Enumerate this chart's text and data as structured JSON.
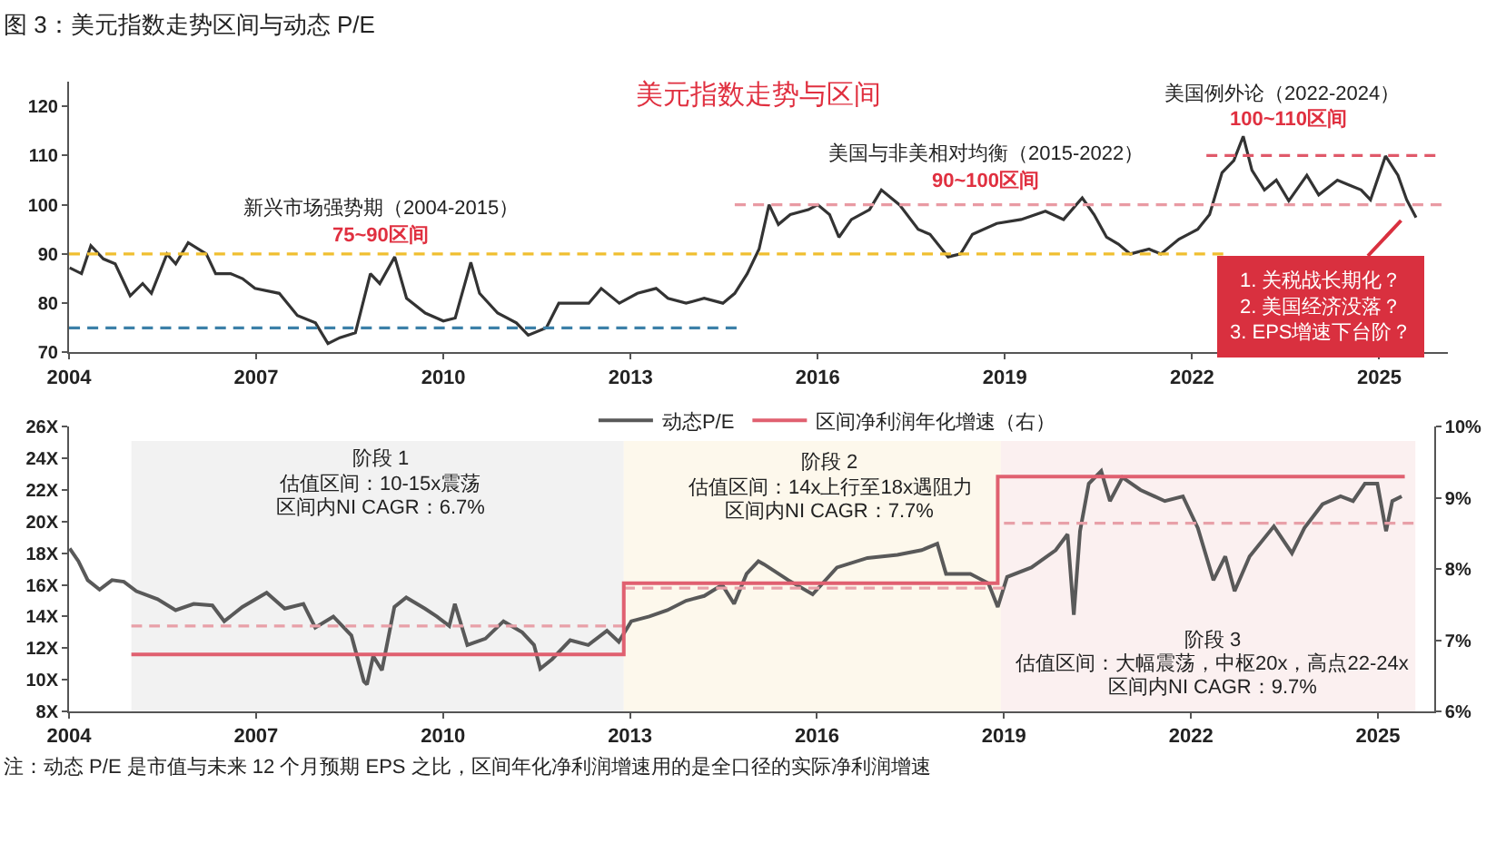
{
  "chart_data": [
    {
      "type": "line",
      "title": "图 3：美元指数走势区间与动态 P/E",
      "subtitle": "美元指数走势与区间",
      "xlim": [
        2004,
        2026.1
      ],
      "xticks": [
        2004,
        2007,
        2010,
        2013,
        2016,
        2019,
        2022,
        2025
      ],
      "ylim": [
        70,
        125
      ],
      "yticks": [
        70,
        80,
        90,
        100,
        110,
        120
      ],
      "annotations": [
        "新兴市场强势期（2004-2015）",
        "75~90区间",
        "美国与非美相对均衡（2015-2022）",
        "90~100区间",
        "美国例外论（2022-2024）",
        "100~110区间",
        "1. 关税战长期化？\n2. 美国经济没落？\n3. EPS增速下台阶？"
      ],
      "series": [
        {
          "color": "#333333",
          "x": [
            2004.01,
            2004.2,
            2004.35,
            2004.55,
            2004.74,
            2004.98,
            2005.18,
            2005.32,
            2005.57,
            2005.71,
            2005.91,
            2006.2,
            2006.35,
            2006.59,
            2006.78,
            2006.98,
            2007.37,
            2007.66,
            2007.95,
            2008.15,
            2008.34,
            2008.59,
            2008.83,
            2008.98,
            2009.22,
            2009.41,
            2009.71,
            2010.0,
            2010.19,
            2010.44,
            2010.58,
            2010.87,
            2011.17,
            2011.36,
            2011.65,
            2011.85,
            2012.14,
            2012.33,
            2012.53,
            2012.82,
            2013.11,
            2013.41,
            2013.6,
            2013.89,
            2014.18,
            2014.48,
            2014.67,
            2014.87,
            2015.06,
            2015.22,
            2015.37,
            2015.56,
            2015.85,
            2016.0,
            2016.19,
            2016.34,
            2016.54,
            2016.83,
            2017.02,
            2017.31,
            2017.61,
            2017.8,
            2018.09,
            2018.29,
            2018.48,
            2018.87,
            2019.26,
            2019.65,
            2019.94,
            2020.24,
            2020.43,
            2020.63,
            2020.82,
            2021.01,
            2021.31,
            2021.5,
            2021.79,
            2022.09,
            2022.28,
            2022.48,
            2022.67,
            2022.82,
            2022.96,
            2023.16,
            2023.35,
            2023.55,
            2023.84,
            2024.03,
            2024.33,
            2024.52,
            2024.71,
            2024.86,
            2025.1,
            2025.3,
            2025.44,
            2025.59
          ],
          "values": [
            87.2,
            86,
            91.7,
            89,
            88,
            81.5,
            84,
            82,
            90,
            88,
            92.3,
            90,
            86,
            86,
            85,
            83,
            82,
            77.5,
            76,
            71.8,
            73,
            74,
            86,
            84,
            89.4,
            81,
            78,
            76.4,
            77,
            88.3,
            82,
            78,
            76,
            73.5,
            75,
            80,
            80,
            80,
            83,
            80,
            82,
            83,
            81,
            80,
            81,
            80,
            82,
            86,
            91,
            100,
            96,
            98,
            99,
            100,
            98,
            93.4,
            97,
            99,
            103,
            100,
            95,
            94,
            89.4,
            90,
            94,
            96.2,
            97,
            98.7,
            97,
            101.4,
            98,
            93.4,
            92,
            90,
            91,
            90,
            93,
            95,
            98,
            106.5,
            109,
            113.9,
            107,
            103,
            105,
            100.8,
            106,
            102,
            105,
            104,
            103,
            101,
            109.9,
            106,
            101,
            97.4
          ]
        },
        {
          "color": "#f0bf30",
          "line_style": "dashed",
          "x": [
            2004,
            2022.5
          ],
          "values": [
            90,
            90
          ]
        },
        {
          "color": "#3c80a8",
          "line_style": "dashed",
          "x": [
            2004,
            2014.7
          ],
          "values": [
            75,
            75
          ]
        },
        {
          "color": "#e99aa3",
          "line_style": "dashed",
          "x": [
            2014.67,
            2026.0
          ],
          "values": [
            100,
            100
          ]
        },
        {
          "color": "#e05a6a",
          "line_style": "dashed",
          "x": [
            2022.23,
            2025.9
          ],
          "values": [
            110,
            110
          ]
        }
      ]
    },
    {
      "type": "line",
      "legend": "top",
      "xlim": [
        2004,
        2025.9
      ],
      "xticks": [
        2004,
        2007,
        2010,
        2013,
        2016,
        2019,
        2022,
        2025
      ],
      "ylim": [
        8,
        26
      ],
      "yticks": [
        {
          "value": 8,
          "label": "8X"
        },
        {
          "value": 10,
          "label": "10X"
        },
        {
          "value": 12,
          "label": "12X"
        },
        {
          "value": 14,
          "label": "14X"
        },
        {
          "value": 16,
          "label": "16X"
        },
        {
          "value": 18,
          "label": "18X"
        },
        {
          "value": 20,
          "label": "20X"
        },
        {
          "value": 22,
          "label": "22X"
        },
        {
          "value": 24,
          "label": "24X"
        },
        {
          "value": 26,
          "label": "26X"
        }
      ],
      "y2lim": [
        6,
        10
      ],
      "y2ticks": [
        {
          "value": 6,
          "label": "6%"
        },
        {
          "value": 7,
          "label": "7%"
        },
        {
          "value": 8,
          "label": "8%"
        },
        {
          "value": 9,
          "label": "9%"
        },
        {
          "value": 10,
          "label": "10%"
        }
      ],
      "bands": [
        {
          "axis": "x",
          "from": 2005.0,
          "to": 2012.9,
          "color": "#f2f2f2"
        },
        {
          "axis": "x",
          "from": 2012.9,
          "to": 2018.95,
          "color": "#fdf8ec"
        },
        {
          "axis": "x",
          "from": 2018.95,
          "to": 2025.6,
          "color": "#fbf0f0"
        }
      ],
      "annotations": [
        "阶段 1",
        "估值区间：10-15x震荡",
        "区间内NI CAGR：6.7%",
        "阶段 2",
        "估值区间：14x上行至18x遇阻力",
        "区间内NI CAGR：7.7%",
        "阶段 3",
        "估值区间：大幅震荡，中枢20x，高点22-24x",
        "区间内NI CAGR：9.7%",
        "注：动态 P/E 是市值与未来 12 个月预期 EPS 之比，区间年化净利润增速用的是全口径的实际净利润增速"
      ],
      "series": [
        {
          "name": "动态P/E",
          "color": "#595959",
          "x": [
            2004.01,
            2004.15,
            2004.3,
            2004.49,
            2004.69,
            2004.88,
            2005.08,
            2005.42,
            2005.71,
            2006.0,
            2006.3,
            2006.49,
            2006.78,
            2007.17,
            2007.46,
            2007.76,
            2007.95,
            2008.24,
            2008.53,
            2008.73,
            2008.78,
            2008.88,
            2009.02,
            2009.22,
            2009.41,
            2009.71,
            2009.9,
            2010.1,
            2010.19,
            2010.39,
            2010.68,
            2010.97,
            2011.27,
            2011.46,
            2011.56,
            2011.75,
            2012.04,
            2012.33,
            2012.63,
            2012.82,
            2013.02,
            2013.31,
            2013.6,
            2013.9,
            2014.19,
            2014.48,
            2014.67,
            2014.87,
            2015.06,
            2015.15,
            2015.54,
            2015.93,
            2016.32,
            2016.81,
            2017.29,
            2017.68,
            2017.93,
            2018.07,
            2018.46,
            2018.75,
            2018.9,
            2019.05,
            2019.44,
            2019.83,
            2020.02,
            2020.12,
            2020.22,
            2020.36,
            2020.56,
            2020.7,
            2020.9,
            2021.19,
            2021.58,
            2021.87,
            2022.11,
            2022.36,
            2022.55,
            2022.7,
            2022.94,
            2023.33,
            2023.62,
            2023.82,
            2024.11,
            2024.4,
            2024.6,
            2024.79,
            2024.99,
            2025.13,
            2025.23,
            2025.38
          ],
          "values": [
            18.3,
            17.5,
            16.3,
            15.7,
            16.3,
            16.2,
            15.6,
            15.1,
            14.4,
            14.8,
            14.7,
            13.7,
            14.6,
            15.5,
            14.5,
            14.8,
            13.3,
            14.0,
            12.8,
            9.9,
            9.7,
            11.5,
            10.6,
            14.6,
            15.2,
            14.5,
            14.0,
            13.4,
            14.8,
            12.2,
            12.6,
            13.7,
            13.0,
            12.2,
            10.7,
            11.3,
            12.5,
            12.2,
            13.1,
            12.4,
            13.7,
            14.0,
            14.4,
            15.0,
            15.3,
            16.0,
            14.8,
            16.7,
            17.5,
            17.3,
            16.3,
            15.4,
            17.1,
            17.7,
            17.9,
            18.2,
            18.6,
            16.7,
            16.7,
            16.1,
            14.6,
            16.5,
            17.1,
            18.2,
            19.2,
            14.1,
            19.4,
            22.4,
            23.2,
            21.3,
            22.8,
            22.0,
            21.3,
            21.6,
            19.6,
            16.3,
            17.8,
            15.6,
            17.8,
            19.7,
            18.0,
            19.6,
            21.1,
            21.6,
            21.3,
            22.4,
            22.4,
            19.4,
            21.3,
            21.6
          ]
        },
        {
          "name": "区间净利润年化增速（右）",
          "type": "step",
          "axis": "y2",
          "color": "#e06070",
          "x": [
            2005.0,
            2012.9,
            2018.9,
            2025.43
          ],
          "values": [
            6.8,
            7.8,
            9.3,
            9.3
          ]
        },
        {
          "color": "#e8a0a8",
          "line_style": "dashed",
          "x": [
            2005.0,
            2012.9
          ],
          "values": [
            13.4,
            13.4
          ]
        },
        {
          "color": "#e8a0a8",
          "line_style": "dashed",
          "x": [
            2012.9,
            2019.0
          ],
          "values": [
            15.8,
            15.8
          ]
        },
        {
          "color": "#e8a0a8",
          "line_style": "dashed",
          "x": [
            2019.0,
            2025.57
          ],
          "values": [
            19.9,
            19.9
          ]
        }
      ]
    }
  ]
}
